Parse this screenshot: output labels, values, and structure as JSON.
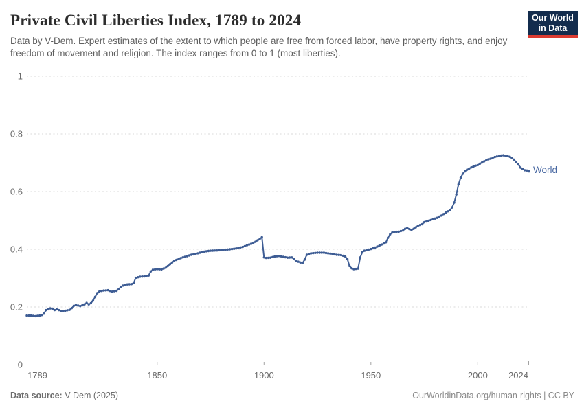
{
  "header": {
    "title": "Private Civil Liberties Index, 1789 to 2024",
    "subtitle": "Data by V-Dem. Expert estimates of the extent to which people are free from forced labor, have property rights, and enjoy freedom of movement and religion. The index ranges from 0 to 1 (most liberties).",
    "logo": {
      "line1": "Our World",
      "line2": "in Data"
    }
  },
  "footer": {
    "source_label": "Data source:",
    "source_value": " V-Dem (2025)",
    "credit": "OurWorldinData.org/human-rights | CC BY"
  },
  "colors": {
    "line": "#3d5c94",
    "series_label": "#4a69a2",
    "grid": "#d8d8d8",
    "axis": "#a3a3a3",
    "tick_label": "#6b6b6b",
    "logo_bg": "#132c4d",
    "logo_stripe": "#dc3b31"
  },
  "chart_data": {
    "type": "line",
    "title": "Private Civil Liberties Index, 1789 to 2024",
    "xlabel": "",
    "ylabel": "",
    "xlim": [
      1789,
      2024
    ],
    "ylim": [
      0,
      1
    ],
    "grid": "horizontal-dashed",
    "legend_position": "right-of-line-end",
    "x_ticks": [
      1789,
      1850,
      1900,
      1950,
      2000,
      2024
    ],
    "y_ticks": [
      0,
      0.2,
      0.4,
      0.6,
      0.8,
      1
    ],
    "y_tick_labels": [
      "0",
      "0.2",
      "0.4",
      "0.6",
      "0.8",
      "1"
    ],
    "series": [
      {
        "name": "World",
        "points": [
          [
            1789,
            0.17
          ],
          [
            1791,
            0.17
          ],
          [
            1793,
            0.168
          ],
          [
            1795,
            0.17
          ],
          [
            1796,
            0.172
          ],
          [
            1797,
            0.177
          ],
          [
            1798,
            0.189
          ],
          [
            1800,
            0.195
          ],
          [
            1801,
            0.194
          ],
          [
            1802,
            0.189
          ],
          [
            1803,
            0.192
          ],
          [
            1805,
            0.186
          ],
          [
            1807,
            0.187
          ],
          [
            1809,
            0.19
          ],
          [
            1810,
            0.196
          ],
          [
            1811,
            0.204
          ],
          [
            1812,
            0.207
          ],
          [
            1814,
            0.203
          ],
          [
            1816,
            0.209
          ],
          [
            1817,
            0.214
          ],
          [
            1818,
            0.209
          ],
          [
            1819,
            0.213
          ],
          [
            1820,
            0.222
          ],
          [
            1821,
            0.235
          ],
          [
            1822,
            0.248
          ],
          [
            1823,
            0.254
          ],
          [
            1825,
            0.257
          ],
          [
            1827,
            0.258
          ],
          [
            1829,
            0.253
          ],
          [
            1831,
            0.256
          ],
          [
            1832,
            0.262
          ],
          [
            1833,
            0.27
          ],
          [
            1834,
            0.274
          ],
          [
            1836,
            0.278
          ],
          [
            1838,
            0.279
          ],
          [
            1839,
            0.283
          ],
          [
            1840,
            0.301
          ],
          [
            1842,
            0.305
          ],
          [
            1844,
            0.306
          ],
          [
            1846,
            0.309
          ],
          [
            1847,
            0.323
          ],
          [
            1848,
            0.329
          ],
          [
            1850,
            0.331
          ],
          [
            1852,
            0.33
          ],
          [
            1854,
            0.336
          ],
          [
            1856,
            0.348
          ],
          [
            1858,
            0.36
          ],
          [
            1860,
            0.366
          ],
          [
            1862,
            0.372
          ],
          [
            1864,
            0.376
          ],
          [
            1866,
            0.381
          ],
          [
            1868,
            0.384
          ],
          [
            1870,
            0.388
          ],
          [
            1872,
            0.392
          ],
          [
            1875,
            0.395
          ],
          [
            1878,
            0.396
          ],
          [
            1881,
            0.398
          ],
          [
            1884,
            0.4
          ],
          [
            1887,
            0.403
          ],
          [
            1890,
            0.408
          ],
          [
            1892,
            0.414
          ],
          [
            1894,
            0.419
          ],
          [
            1896,
            0.426
          ],
          [
            1898,
            0.436
          ],
          [
            1899,
            0.442
          ],
          [
            1900,
            0.372
          ],
          [
            1901,
            0.37
          ],
          [
            1903,
            0.371
          ],
          [
            1905,
            0.375
          ],
          [
            1907,
            0.377
          ],
          [
            1909,
            0.374
          ],
          [
            1911,
            0.371
          ],
          [
            1913,
            0.372
          ],
          [
            1914,
            0.366
          ],
          [
            1915,
            0.36
          ],
          [
            1917,
            0.354
          ],
          [
            1918,
            0.352
          ],
          [
            1919,
            0.364
          ],
          [
            1920,
            0.381
          ],
          [
            1922,
            0.386
          ],
          [
            1925,
            0.388
          ],
          [
            1928,
            0.388
          ],
          [
            1930,
            0.386
          ],
          [
            1932,
            0.384
          ],
          [
            1934,
            0.381
          ],
          [
            1936,
            0.38
          ],
          [
            1938,
            0.375
          ],
          [
            1939,
            0.366
          ],
          [
            1940,
            0.342
          ],
          [
            1941,
            0.334
          ],
          [
            1942,
            0.331
          ],
          [
            1944,
            0.333
          ],
          [
            1945,
            0.372
          ],
          [
            1946,
            0.39
          ],
          [
            1947,
            0.395
          ],
          [
            1948,
            0.397
          ],
          [
            1950,
            0.401
          ],
          [
            1952,
            0.406
          ],
          [
            1954,
            0.413
          ],
          [
            1956,
            0.42
          ],
          [
            1957,
            0.424
          ],
          [
            1958,
            0.44
          ],
          [
            1959,
            0.452
          ],
          [
            1960,
            0.458
          ],
          [
            1961,
            0.46
          ],
          [
            1963,
            0.461
          ],
          [
            1965,
            0.465
          ],
          [
            1966,
            0.471
          ],
          [
            1967,
            0.474
          ],
          [
            1968,
            0.47
          ],
          [
            1969,
            0.467
          ],
          [
            1970,
            0.471
          ],
          [
            1972,
            0.481
          ],
          [
            1974,
            0.487
          ],
          [
            1975,
            0.494
          ],
          [
            1977,
            0.499
          ],
          [
            1979,
            0.504
          ],
          [
            1981,
            0.509
          ],
          [
            1983,
            0.517
          ],
          [
            1985,
            0.527
          ],
          [
            1987,
            0.536
          ],
          [
            1988,
            0.545
          ],
          [
            1989,
            0.562
          ],
          [
            1990,
            0.59
          ],
          [
            1991,
            0.625
          ],
          [
            1992,
            0.648
          ],
          [
            1993,
            0.662
          ],
          [
            1994,
            0.67
          ],
          [
            1995,
            0.676
          ],
          [
            1996,
            0.68
          ],
          [
            1997,
            0.684
          ],
          [
            1998,
            0.687
          ],
          [
            1999,
            0.69
          ],
          [
            2000,
            0.692
          ],
          [
            2001,
            0.697
          ],
          [
            2002,
            0.701
          ],
          [
            2003,
            0.705
          ],
          [
            2004,
            0.709
          ],
          [
            2005,
            0.712
          ],
          [
            2006,
            0.714
          ],
          [
            2007,
            0.717
          ],
          [
            2008,
            0.72
          ],
          [
            2009,
            0.722
          ],
          [
            2010,
            0.723
          ],
          [
            2011,
            0.725
          ],
          [
            2012,
            0.726
          ],
          [
            2013,
            0.724
          ],
          [
            2014,
            0.723
          ],
          [
            2015,
            0.721
          ],
          [
            2016,
            0.716
          ],
          [
            2017,
            0.711
          ],
          [
            2018,
            0.702
          ],
          [
            2019,
            0.694
          ],
          [
            2020,
            0.683
          ],
          [
            2021,
            0.678
          ],
          [
            2022,
            0.674
          ],
          [
            2023,
            0.673
          ],
          [
            2024,
            0.67
          ]
        ]
      }
    ]
  }
}
